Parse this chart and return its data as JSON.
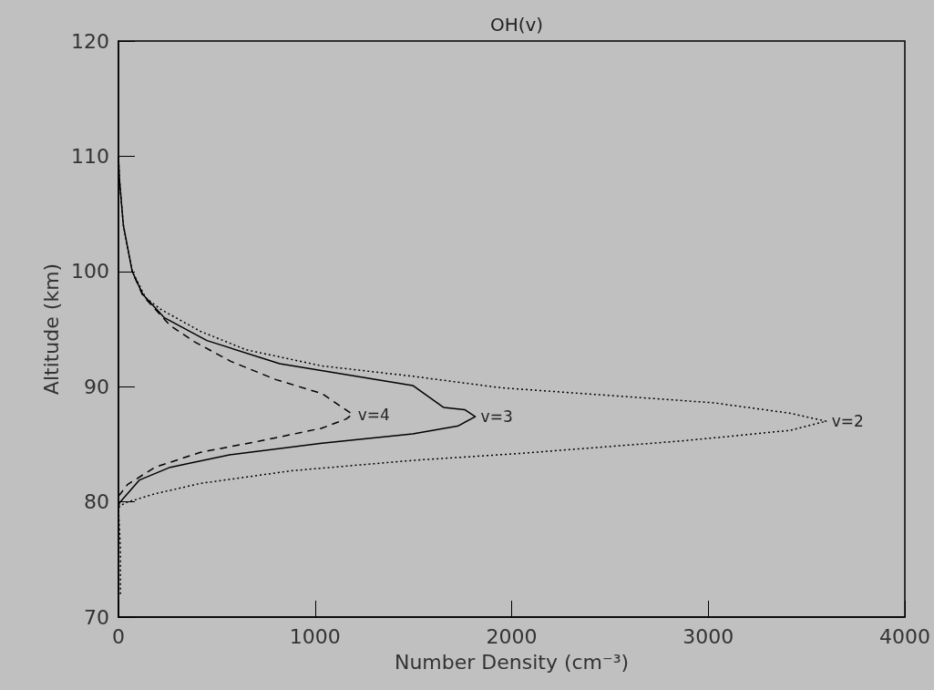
{
  "chart_data": {
    "type": "line",
    "title": "OH(v)",
    "xlabel": "Number Density (cm⁻³)",
    "ylabel": "Altitude (km)",
    "xlim": [
      0,
      4000
    ],
    "xticks": [
      0,
      1000,
      2000,
      3000,
      4000
    ],
    "ylim": [
      70,
      120
    ],
    "yticks": [
      70,
      80,
      90,
      100,
      110,
      120
    ],
    "grid": false,
    "legend": false,
    "marker": "none",
    "series": [
      {
        "name": "v=2",
        "color": "#000000",
        "line_style": "dotted",
        "x": [
          10,
          10,
          0,
          31,
          185,
          417,
          880,
          1497,
          2039,
          2874,
          3414,
          3600,
          3414,
          3027,
          1947,
          1497,
          1035,
          649,
          417,
          216,
          139,
          70,
          25,
          5,
          0
        ],
        "values": [
          72,
          76,
          79.5,
          79.9,
          80.7,
          81.6,
          82.7,
          83.6,
          84.2,
          85.3,
          86.2,
          87,
          87.7,
          88.6,
          89.9,
          90.9,
          91.8,
          93.2,
          94.8,
          96.7,
          97.7,
          100,
          104,
          108,
          110
        ]
      },
      {
        "name": "v=3",
        "color": "#000000",
        "line_style": "solid",
        "x": [
          0,
          5,
          107,
          263,
          571,
          1035,
          1497,
          1729,
          1815,
          1761,
          1653,
          1497,
          820,
          450,
          232,
          124,
          70,
          25,
          5,
          0
        ],
        "values": [
          79.5,
          79.9,
          81.9,
          83,
          84.1,
          85.1,
          85.9,
          86.6,
          87.4,
          88,
          88.2,
          90.1,
          92,
          94,
          96,
          98,
          100,
          104,
          108,
          110
        ]
      },
      {
        "name": "v=4",
        "color": "#000000",
        "line_style": "dashed",
        "x": [
          0,
          10,
          46,
          185,
          417,
          726,
          1035,
          1159,
          1190,
          1035,
          803,
          571,
          386,
          263,
          124,
          70
        ],
        "values": [
          80.5,
          80.7,
          81.5,
          83,
          84.3,
          85.3,
          86.4,
          87.2,
          87.6,
          89.4,
          90.6,
          92.2,
          93.9,
          95.3,
          97.9,
          100
        ]
      }
    ]
  }
}
